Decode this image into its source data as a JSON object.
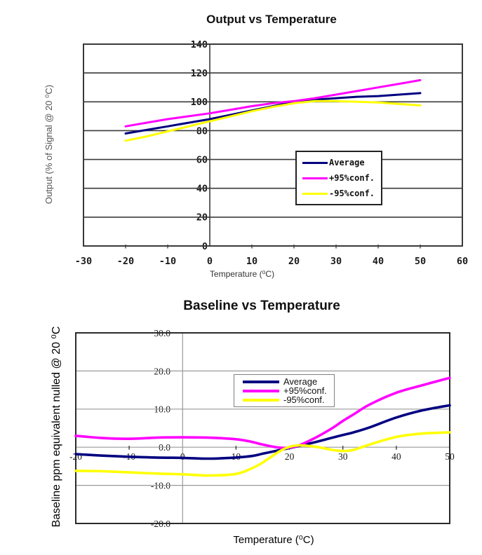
{
  "colors": {
    "average": "#000080",
    "plus95": "#FF00FF",
    "minus95": "#FFFF00",
    "top_grid": "#3a3a3a",
    "bottom_grid": "#9a9a9a",
    "frame": "#2b2b2b"
  },
  "chart_data": [
    {
      "id": "output-vs-temperature",
      "type": "line",
      "title": "Output vs Temperature",
      "xlabel": "Temperature (⁰C)",
      "ylabel": "Output (% of Signal @ 20 ⁰C)",
      "xlim": [
        -30,
        60
      ],
      "ylim": [
        0,
        140
      ],
      "xticks": [
        -30,
        -20,
        -10,
        0,
        10,
        20,
        30,
        40,
        50,
        60
      ],
      "xtick_labels": [
        "-30",
        "-20",
        "-10",
        "0",
        "10",
        "20",
        "30",
        "40",
        "50",
        "60"
      ],
      "yticks": [
        0,
        20,
        40,
        60,
        80,
        100,
        120,
        140
      ],
      "ytick_labels": [
        "0",
        "20",
        "40",
        "60",
        "80",
        "100",
        "120",
        "140"
      ],
      "grid": "horizontal",
      "legend_position": "center-right",
      "x": [
        -20,
        -15,
        -10,
        -5,
        0,
        5,
        10,
        15,
        20,
        25,
        30,
        35,
        40,
        45,
        50
      ],
      "series": [
        {
          "name": "Average",
          "color": "#000080",
          "values": [
            78,
            80.5,
            83,
            85.5,
            88,
            91,
            94,
            97,
            100,
            101.5,
            102.5,
            103.5,
            104,
            105,
            106
          ]
        },
        {
          "name": "+95%conf.",
          "color": "#FF00FF",
          "values": [
            83,
            85.5,
            88,
            90,
            92,
            94.5,
            97,
            99,
            100.5,
            102.5,
            105,
            107.5,
            110,
            112.5,
            115
          ]
        },
        {
          "name": "-95%conf.",
          "color": "#FFFF00",
          "values": [
            73,
            76,
            79.5,
            83,
            86.5,
            90,
            93.5,
            96.5,
            99,
            100.5,
            100.5,
            100,
            99.5,
            98.5,
            97.5
          ]
        }
      ]
    },
    {
      "id": "baseline-vs-temperature",
      "type": "line",
      "title": "Baseline vs Temperature",
      "xlabel": "Temperature (⁰C)",
      "ylabel": "Baseline ppm equivalent nulled @ 20 ⁰C",
      "xlim": [
        -20,
        50
      ],
      "ylim": [
        -20,
        30
      ],
      "xticks": [
        -20,
        -10,
        0,
        10,
        20,
        30,
        40,
        50
      ],
      "xtick_labels": [
        "-20",
        "-10",
        "0",
        "10",
        "20",
        "30",
        "40",
        "50"
      ],
      "yticks": [
        -20,
        -10,
        0,
        10,
        20,
        30
      ],
      "ytick_labels": [
        "-20.0",
        "-10.0",
        "0.0",
        "10.0",
        "20.0",
        "30.0"
      ],
      "grid": "horizontal",
      "legend_position": "top-center",
      "x": [
        -20,
        -15,
        -10,
        -5,
        0,
        5,
        10,
        13,
        15,
        18,
        20,
        22,
        25,
        28,
        30,
        32,
        35,
        40,
        45,
        50
      ],
      "series": [
        {
          "name": "Average",
          "color": "#000080",
          "values": [
            -1.8,
            -2.2,
            -2.5,
            -2.7,
            -2.8,
            -3.0,
            -2.7,
            -2.3,
            -1.7,
            -0.8,
            -0.2,
            0.4,
            1.4,
            2.5,
            3.2,
            3.9,
            5.2,
            7.8,
            9.7,
            11.0
          ]
        },
        {
          "name": "+95%conf.",
          "color": "#FF00FF",
          "values": [
            3.0,
            2.4,
            2.2,
            2.5,
            2.6,
            2.5,
            2.1,
            1.4,
            0.7,
            -0.1,
            -0.1,
            0.6,
            2.6,
            5.0,
            6.9,
            8.6,
            11.2,
            14.3,
            16.3,
            18.2
          ]
        },
        {
          "name": "-95%conf.",
          "color": "#FFFF00",
          "values": [
            -6.2,
            -6.3,
            -6.6,
            -6.9,
            -7.1,
            -7.4,
            -7.0,
            -5.5,
            -4.0,
            -1.2,
            0.1,
            0.5,
            0.1,
            -0.7,
            -1.0,
            -0.7,
            0.7,
            2.7,
            3.6,
            3.9
          ]
        }
      ]
    }
  ]
}
